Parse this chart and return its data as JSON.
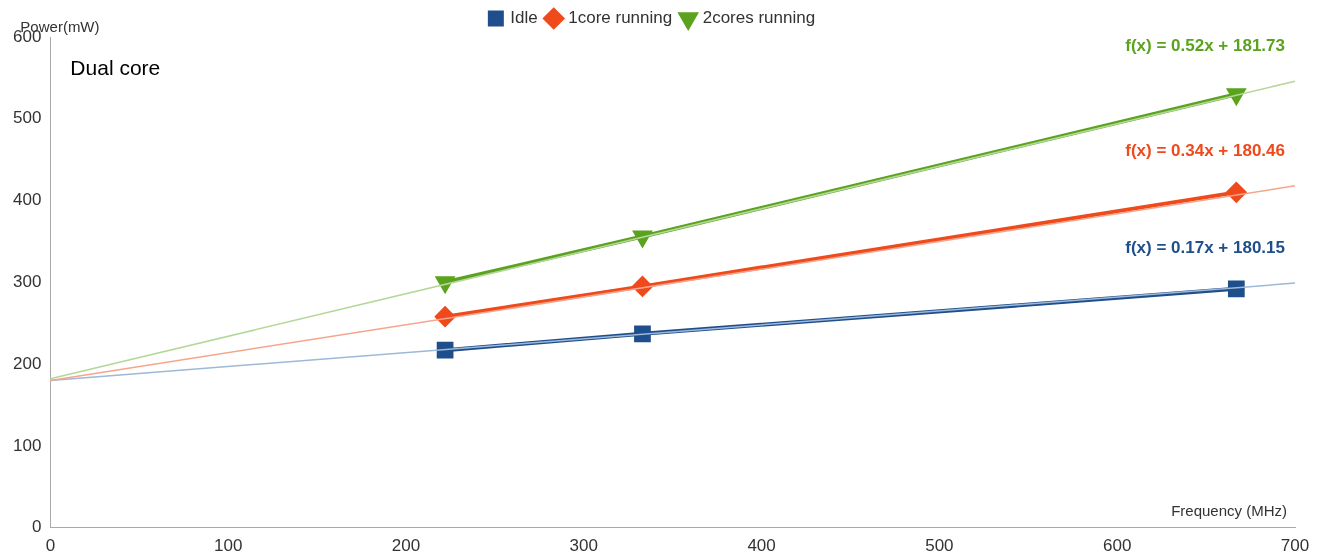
{
  "chart_data": {
    "type": "line",
    "xlabel": "Frequency (MHz)",
    "ylabel": "Power(mW)",
    "xlim": [
      0,
      700
    ],
    "xticks": [
      0,
      100,
      200,
      300,
      400,
      500,
      600,
      700
    ],
    "ylim": [
      0,
      600
    ],
    "yticks": [
      0,
      100,
      200,
      300,
      400,
      500,
      600
    ],
    "legend": "top",
    "line_style": "solid",
    "series": [
      {
        "name": "Idle",
        "color": "#1f4e8c",
        "marker": "square",
        "x": [
          222,
          333,
          667
        ],
        "values": [
          217,
          237,
          292
        ]
      },
      {
        "name": "1core running",
        "color": "#ee4a1c",
        "marker": "diamond",
        "x": [
          222,
          333,
          667
        ],
        "values": [
          258,
          295,
          410
        ]
      },
      {
        "name": "2cores running",
        "color": "#5ba21e",
        "marker": "triangle",
        "x": [
          222,
          333,
          667
        ],
        "values": [
          300,
          356,
          530
        ]
      },
      {
        "color": "#9db8d8",
        "marker": "none",
        "x": [
          0,
          700
        ],
        "values": [
          180,
          299
        ]
      },
      {
        "color": "#f5a58c",
        "marker": "none",
        "x": [
          0,
          700
        ],
        "values": [
          180,
          418
        ]
      },
      {
        "color": "#b5d89a",
        "marker": "none",
        "x": [
          0,
          700
        ],
        "values": [
          182,
          546
        ]
      }
    ],
    "annotations": [
      "Dual core",
      "f(x) = 0.17x + 180.15",
      "f(x) = 0.34x + 180.46",
      "f(x) = 0.52x + 181.73"
    ]
  }
}
